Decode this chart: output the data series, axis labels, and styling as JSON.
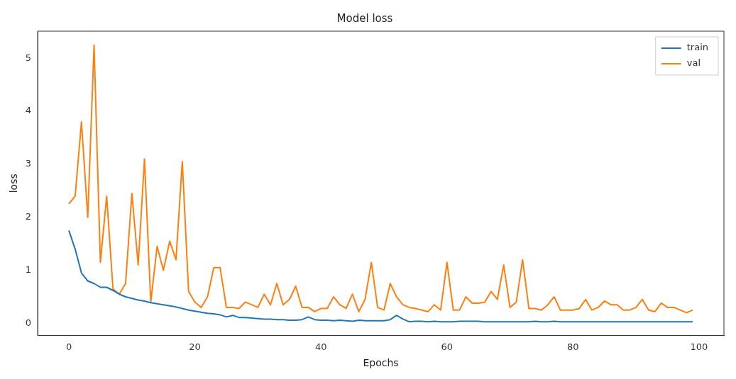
{
  "chart_data": {
    "type": "line",
    "title": "Model loss",
    "xlabel": "Epochs",
    "ylabel": "loss",
    "x": [
      0,
      1,
      2,
      3,
      4,
      5,
      6,
      7,
      8,
      9,
      10,
      11,
      12,
      13,
      14,
      15,
      16,
      17,
      18,
      19,
      20,
      21,
      22,
      23,
      24,
      25,
      26,
      27,
      28,
      29,
      30,
      31,
      32,
      33,
      34,
      35,
      36,
      37,
      38,
      39,
      40,
      41,
      42,
      43,
      44,
      45,
      46,
      47,
      48,
      49,
      50,
      51,
      52,
      53,
      54,
      55,
      56,
      57,
      58,
      59,
      60,
      61,
      62,
      63,
      64,
      65,
      66,
      67,
      68,
      69,
      70,
      71,
      72,
      73,
      74,
      75,
      76,
      77,
      78,
      79,
      80,
      81,
      82,
      83,
      84,
      85,
      86,
      87,
      88,
      89,
      90,
      91,
      92,
      93,
      94,
      95,
      96,
      97,
      98,
      99
    ],
    "series": [
      {
        "name": "train",
        "color": "#1f77b4",
        "values": [
          1.75,
          1.4,
          0.95,
          0.8,
          0.75,
          0.68,
          0.68,
          0.62,
          0.55,
          0.5,
          0.47,
          0.44,
          0.42,
          0.39,
          0.37,
          0.35,
          0.33,
          0.31,
          0.28,
          0.25,
          0.23,
          0.21,
          0.19,
          0.18,
          0.16,
          0.12,
          0.15,
          0.11,
          0.11,
          0.1,
          0.09,
          0.08,
          0.08,
          0.07,
          0.07,
          0.06,
          0.06,
          0.07,
          0.12,
          0.07,
          0.06,
          0.06,
          0.05,
          0.06,
          0.05,
          0.04,
          0.06,
          0.05,
          0.05,
          0.05,
          0.05,
          0.07,
          0.15,
          0.08,
          0.03,
          0.04,
          0.04,
          0.03,
          0.04,
          0.03,
          0.03,
          0.03,
          0.04,
          0.04,
          0.04,
          0.04,
          0.03,
          0.03,
          0.03,
          0.03,
          0.03,
          0.03,
          0.03,
          0.03,
          0.04,
          0.03,
          0.03,
          0.04,
          0.03,
          0.03,
          0.03,
          0.03,
          0.03,
          0.03,
          0.03,
          0.03,
          0.03,
          0.03,
          0.03,
          0.03,
          0.03,
          0.03,
          0.03,
          0.03,
          0.03,
          0.03,
          0.03,
          0.03,
          0.03,
          0.03
        ]
      },
      {
        "name": "val",
        "color": "#ff7f0e",
        "values": [
          2.25,
          2.4,
          3.8,
          2.0,
          5.25,
          1.15,
          2.4,
          0.65,
          0.55,
          0.75,
          2.45,
          1.1,
          3.1,
          0.4,
          1.45,
          1.0,
          1.55,
          1.2,
          3.05,
          0.6,
          0.4,
          0.3,
          0.5,
          1.05,
          1.05,
          0.3,
          0.3,
          0.28,
          0.4,
          0.35,
          0.3,
          0.55,
          0.35,
          0.75,
          0.35,
          0.45,
          0.7,
          0.3,
          0.3,
          0.22,
          0.28,
          0.28,
          0.5,
          0.35,
          0.28,
          0.55,
          0.22,
          0.45,
          1.15,
          0.3,
          0.25,
          0.75,
          0.5,
          0.35,
          0.3,
          0.28,
          0.25,
          0.22,
          0.35,
          0.25,
          1.15,
          0.25,
          0.25,
          0.5,
          0.38,
          0.38,
          0.4,
          0.6,
          0.45,
          1.1,
          0.3,
          0.4,
          1.2,
          0.28,
          0.28,
          0.25,
          0.35,
          0.5,
          0.25,
          0.25,
          0.25,
          0.28,
          0.45,
          0.25,
          0.3,
          0.42,
          0.35,
          0.35,
          0.25,
          0.25,
          0.3,
          0.45,
          0.25,
          0.22,
          0.38,
          0.3,
          0.3,
          0.25,
          0.2,
          0.25
        ]
      }
    ],
    "xlim": [
      -4.95,
      103.95
    ],
    "xticks": [
      0,
      20,
      40,
      60,
      80,
      100
    ],
    "ylim": [
      -0.23,
      5.51
    ],
    "yticks": [
      0,
      1,
      2,
      3,
      4,
      5
    ],
    "grid": false,
    "legend": "top right",
    "marker": "none",
    "line_style": "solid"
  }
}
